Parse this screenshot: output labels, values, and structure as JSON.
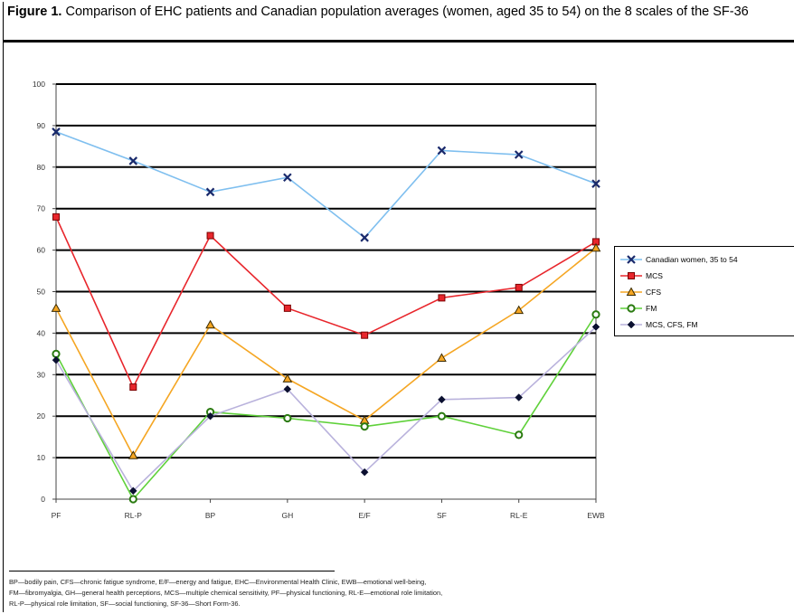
{
  "caption": {
    "label": "Figure 1.",
    "text": "Comparison of EHC patients and Canadian population averages (women, aged 35 to 54) on the 8 scales of the SF-36"
  },
  "footnote": {
    "lines": [
      "BP—bodily pain, CFS—chronic fatigue syndrome, E/F—energy and fatigue, EHC—Environmental Health Clinic, EWB—emotional well-being,",
      "FM—fibromyalgia, GH—general health perceptions, MCS—multiple chemical sensitivity, PF—physical functioning, RL-E—emotional role limitation,",
      "RL-P—physical role limitation, SF—social functioning, SF-36—Short Form-36."
    ]
  },
  "chart_data": {
    "type": "line",
    "title": "",
    "xlabel": "",
    "ylabel": "",
    "categories": [
      "PF",
      "RL-P",
      "BP",
      "GH",
      "E/F",
      "SF",
      "RL-E",
      "EWB"
    ],
    "ylim": [
      0,
      100
    ],
    "yticks": [
      0,
      10,
      20,
      30,
      40,
      50,
      60,
      70,
      80,
      90,
      100
    ],
    "grid": true,
    "legend_position": "right",
    "series": [
      {
        "name": "Canadian women, 35 to 54",
        "color": "#7fbfef",
        "marker": "x",
        "values": [
          88.5,
          81.5,
          74,
          77.5,
          63,
          84,
          83,
          76
        ]
      },
      {
        "name": "MCS",
        "color": "#e8262c",
        "marker": "square",
        "values": [
          68,
          27,
          63.5,
          46,
          39.5,
          48.5,
          51,
          62
        ]
      },
      {
        "name": "CFS",
        "color": "#f5a623",
        "marker": "triangle",
        "values": [
          46,
          10.5,
          42,
          29,
          19,
          34,
          45.5,
          60.5
        ]
      },
      {
        "name": "FM",
        "color": "#5fd13a",
        "marker": "circle",
        "values": [
          35,
          0,
          21,
          19.5,
          17.5,
          20,
          15.5,
          44.5
        ]
      },
      {
        "name": "MCS, CFS, FM",
        "color": "#b9b2dc",
        "marker": "diamond",
        "values": [
          33.5,
          2,
          20,
          26.5,
          6.5,
          24,
          24.5,
          41.5
        ]
      }
    ]
  }
}
